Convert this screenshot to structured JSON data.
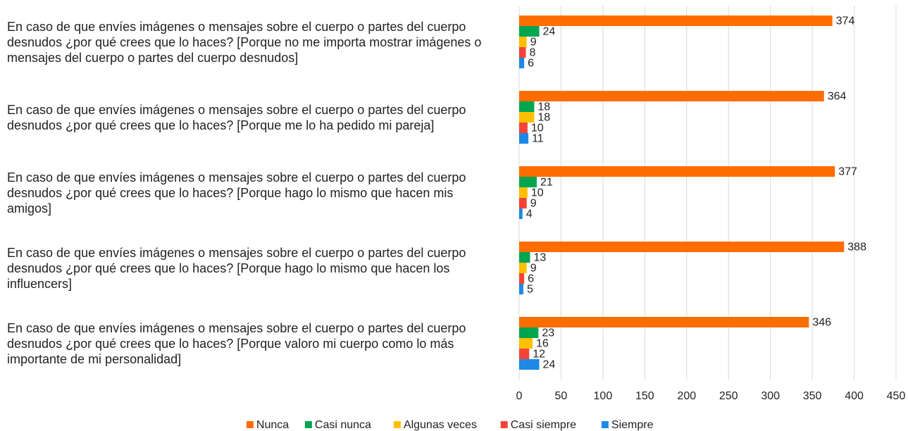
{
  "chart_data": {
    "type": "barh",
    "categories": [
      "En caso de que envíes imágenes o mensajes sobre el cuerpo o partes del cuerpo desnudos ¿por qué crees que lo haces? [Porque no me importa mostrar imágenes o mensajes del cuerpo o partes del cuerpo desnudos]",
      "En caso de que envíes imágenes o mensajes sobre el cuerpo o partes del cuerpo desnudos ¿por qué crees que lo haces? [Porque me lo ha pedido mi pareja]",
      "En caso de que envíes imágenes o mensajes sobre el cuerpo o partes del cuerpo desnudos ¿por qué crees que lo haces? [Porque hago lo mismo que hacen mis amigos]",
      "En caso de que envíes imágenes o mensajes sobre el cuerpo o partes del cuerpo desnudos ¿por qué crees que lo haces? [Porque hago lo mismo que hacen los influencers]",
      "En caso de que envíes imágenes o mensajes sobre el cuerpo o partes del cuerpo desnudos ¿por qué crees que lo haces? [Porque valoro mi cuerpo como lo más importante de mi personalidad]"
    ],
    "series": [
      {
        "name": "Nunca",
        "color": "#ff6d00",
        "values": [
          374,
          364,
          377,
          388,
          346
        ]
      },
      {
        "name": "Casi nunca",
        "color": "#00a550",
        "values": [
          24,
          18,
          21,
          13,
          23
        ]
      },
      {
        "name": "Algunas veces",
        "color": "#ffc000",
        "values": [
          9,
          18,
          10,
          9,
          16
        ]
      },
      {
        "name": "Casi siempre",
        "color": "#f44336",
        "values": [
          8,
          10,
          9,
          6,
          12
        ]
      },
      {
        "name": "Siempre",
        "color": "#1e88e5",
        "values": [
          6,
          11,
          4,
          5,
          24
        ]
      }
    ],
    "xlim": [
      0,
      450
    ],
    "xticks": [
      0,
      50,
      100,
      150,
      200,
      250,
      300,
      350,
      400,
      450
    ],
    "grid": true,
    "legend": "bottom"
  }
}
